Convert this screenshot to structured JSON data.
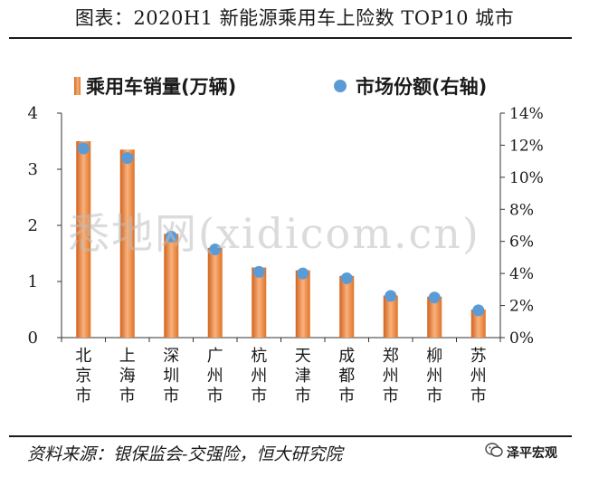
{
  "header": {
    "title": "图表：2020H1 新能源乘用车上险数 TOP10 城市"
  },
  "legend": {
    "bar_label": "乘用车销量(万辆)",
    "dot_label": "市场份额(右轴)"
  },
  "watermark": "悉地网(xidicom.cn)",
  "footer": {
    "source": "资料来源：银保监会-交强险，恒大研究院",
    "brand": "泽平宏观"
  },
  "colors": {
    "bar": "#e8863a",
    "dot": "#5b9bd5",
    "axis": "#333333"
  },
  "chart_data": {
    "type": "bar",
    "categories": [
      "北京市",
      "上海市",
      "深圳市",
      "广州市",
      "杭州市",
      "天津市",
      "成都市",
      "郑州市",
      "柳州市",
      "苏州市"
    ],
    "series": [
      {
        "name": "乘用车销量(万辆)",
        "type": "bar",
        "axis": "left",
        "values": [
          3.5,
          3.35,
          1.85,
          1.6,
          1.25,
          1.2,
          1.1,
          0.75,
          0.73,
          0.5
        ]
      },
      {
        "name": "市场份额(右轴)",
        "type": "scatter",
        "axis": "right",
        "values": [
          11.8,
          11.2,
          6.3,
          5.5,
          4.1,
          4.0,
          3.7,
          2.6,
          2.5,
          1.7
        ]
      }
    ],
    "left_axis": {
      "min": 0,
      "max": 4,
      "ticks": [
        0,
        1,
        2,
        3,
        4
      ]
    },
    "right_axis": {
      "min": 0,
      "max": 14,
      "ticks": [
        "0%",
        "2%",
        "4%",
        "6%",
        "8%",
        "10%",
        "12%",
        "14%"
      ]
    },
    "grid": false,
    "legend_position": "top"
  }
}
